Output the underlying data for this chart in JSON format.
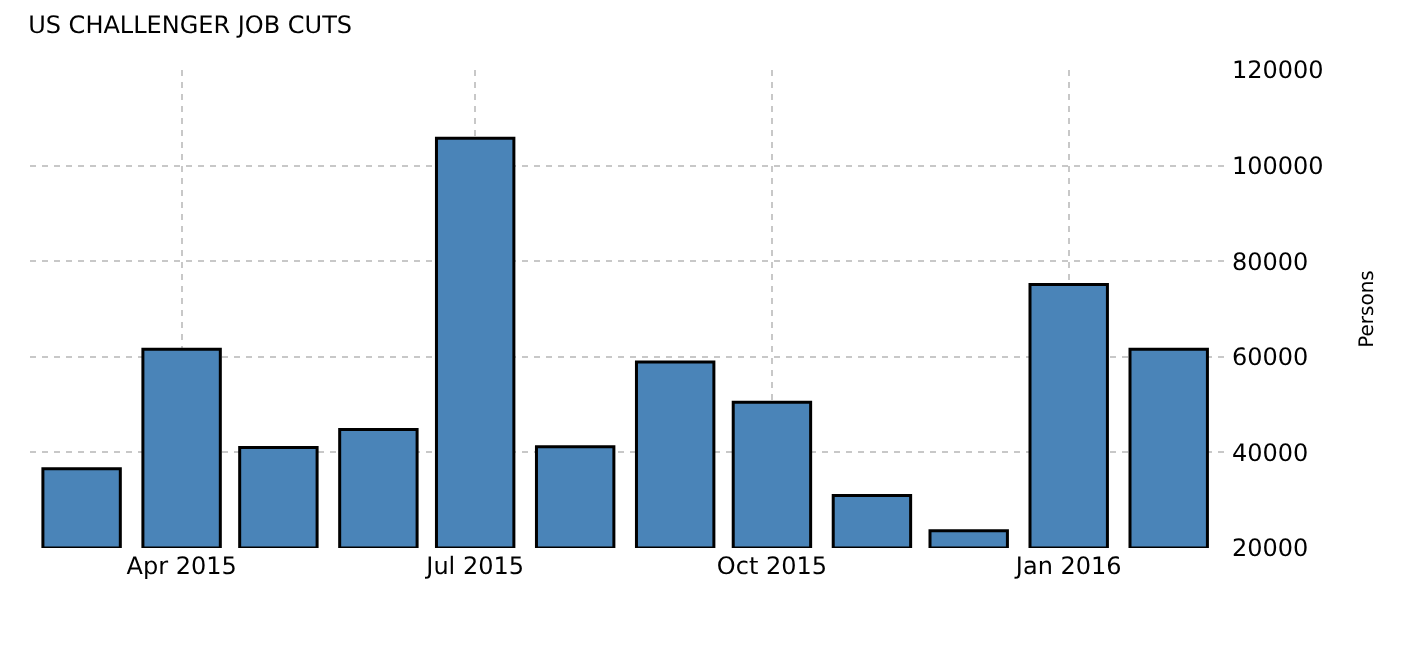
{
  "chart_data": {
    "type": "bar",
    "title": "US CHALLENGER JOB CUTS",
    "ylabel": "Persons",
    "x": [
      "2015-03",
      "2015-04",
      "2015-05",
      "2015-06",
      "2015-07",
      "2015-08",
      "2015-09",
      "2015-10",
      "2015-11",
      "2015-12",
      "2016-01",
      "2016-02"
    ],
    "values": [
      36600,
      61600,
      41000,
      44800,
      105700,
      41200,
      58900,
      50500,
      31000,
      23600,
      75100,
      61600
    ],
    "color": "#4a84b8",
    "xlim": [
      "2015-02-13",
      "2016-02-20"
    ],
    "xticks": [
      {
        "value": "2015-04",
        "label": "Apr 2015"
      },
      {
        "value": "2015-07",
        "label": "Jul 2015"
      },
      {
        "value": "2015-10",
        "label": "Oct 2015"
      },
      {
        "value": "2016-01",
        "label": "Jan 2016"
      }
    ],
    "ylim": [
      20000,
      120000
    ],
    "yticks": [
      20000,
      40000,
      60000,
      80000,
      100000,
      120000
    ],
    "grid": true,
    "legend": false
  }
}
